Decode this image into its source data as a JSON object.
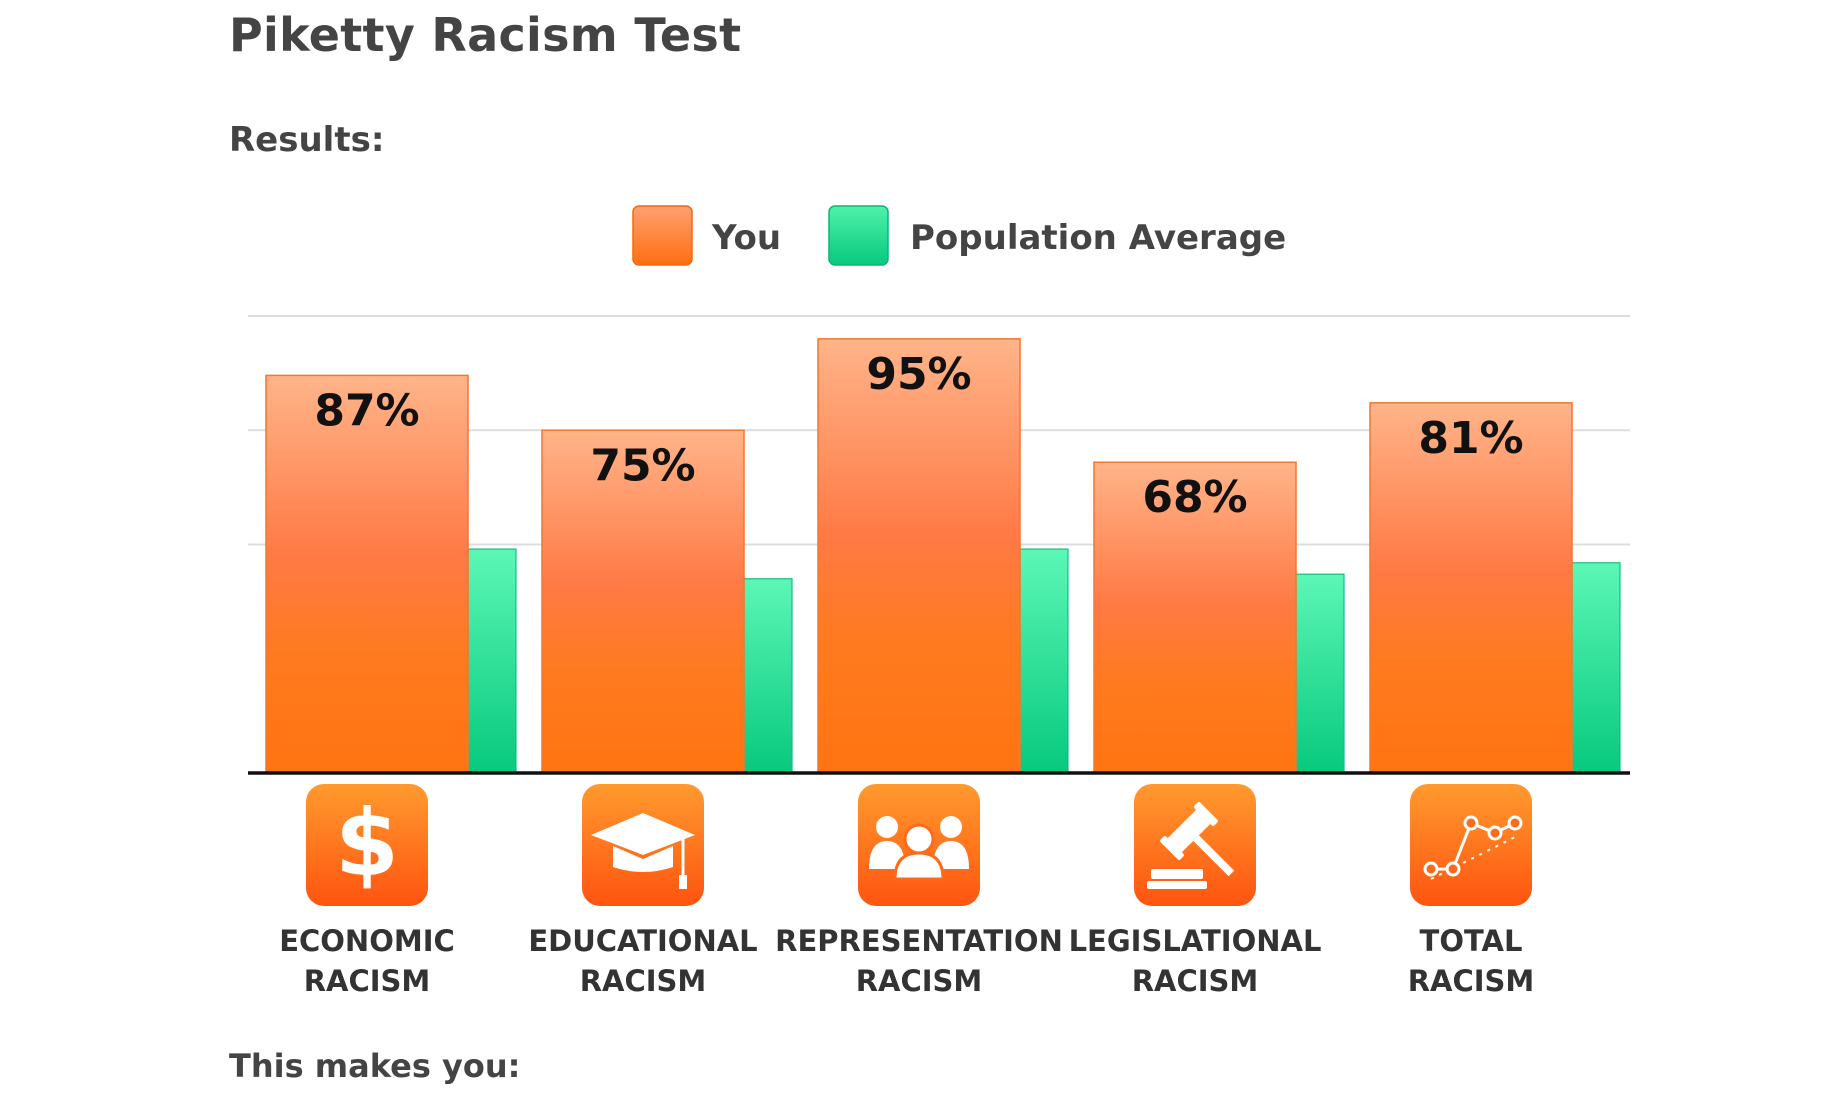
{
  "page": {
    "title": "Piketty Racism Test",
    "results_heading": "Results:",
    "makes_heading": "This makes you:"
  },
  "chart_data": {
    "type": "bar",
    "categories": [
      "ECONOMIC RACISM",
      "EDUCATIONAL RACISM",
      "REPRESENTATION RACISM",
      "LEGISLATIONAL RACISM",
      "TOTAL RACISM"
    ],
    "category_lines": [
      [
        "ECONOMIC",
        "RACISM"
      ],
      [
        "EDUCATIONAL",
        "RACISM"
      ],
      [
        "REPRESENTATION",
        "RACISM"
      ],
      [
        "LEGISLATIONAL",
        "RACISM"
      ],
      [
        "TOTAL",
        "RACISM"
      ]
    ],
    "category_icons": [
      "dollar-icon",
      "graduation-cap-icon",
      "people-group-icon",
      "gavel-icon",
      "trend-line-icon"
    ],
    "series": [
      {
        "name": "You",
        "values": [
          87,
          75,
          95,
          68,
          81
        ],
        "labels": [
          "87%",
          "75%",
          "95%",
          "68%",
          "81%"
        ],
        "color": "#ff7a1f"
      },
      {
        "name": "Population Average",
        "values": [
          49,
          42.5,
          49,
          43.5,
          46
        ],
        "color": "#1fd68e"
      }
    ],
    "ylim": [
      0,
      100
    ],
    "grid": true,
    "legend_position": "top-center",
    "title": "",
    "xlabel": "",
    "ylabel": ""
  }
}
